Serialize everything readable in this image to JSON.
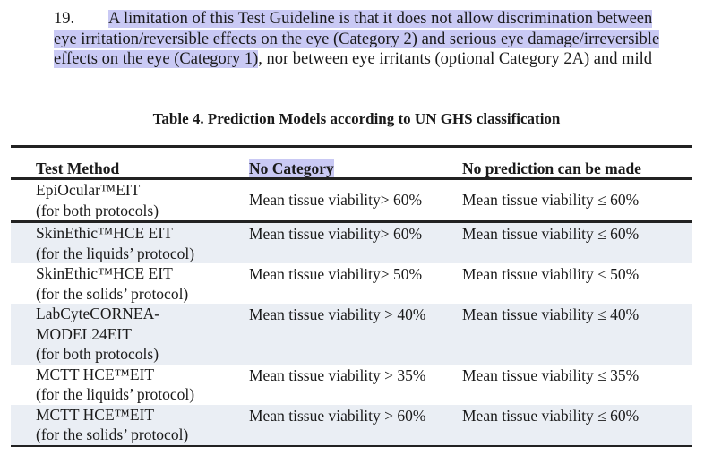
{
  "paragraph": {
    "number": "19.",
    "line1_highlight": "A limitation of this Test Guideline is that it does not allow discrimination between",
    "line2_highlight": "eye irritation/reversible effects on the eye (Category 2) and serious eye damage/irreversible",
    "line3_highlight": "effects on the eye (Category 1)",
    "line3_rest": ", nor between eye irritants (optional Category 2A) and mild"
  },
  "table": {
    "caption": "Table 4. Prediction Models according to UN GHS classification",
    "headers": [
      "Test Method",
      "No Category",
      "No prediction can be made"
    ],
    "rows": [
      {
        "method": [
          "EpiOcular™EIT",
          "(for both protocols)"
        ],
        "no_category": "Mean tissue viability> 60%",
        "no_prediction": "Mean tissue viability ≤ 60%"
      },
      {
        "method": [
          "SkinEthic™HCE EIT",
          "(for the liquids’ protocol)"
        ],
        "no_category": "Mean tissue viability> 60%",
        "no_prediction": "Mean tissue viability ≤ 60%"
      },
      {
        "method": [
          "SkinEthic™HCE EIT",
          "(for the solids’ protocol)"
        ],
        "no_category": "Mean tissue viability> 50%",
        "no_prediction": "Mean tissue viability ≤ 50%"
      },
      {
        "method": [
          "LabCyteCORNEA-",
          "MODEL24EIT",
          "(for both protocols)"
        ],
        "no_category": "Mean tissue viability > 40%",
        "no_prediction": "Mean tissue viability ≤ 40%"
      },
      {
        "method": [
          "MCTT HCE™EIT",
          "(for the liquids’ protocol)"
        ],
        "no_category": "Mean tissue viability > 35%",
        "no_prediction": "Mean tissue viability ≤ 35%"
      },
      {
        "method": [
          "MCTT HCE™EIT",
          "(for the solids’ protocol)"
        ],
        "no_category": "Mean tissue viability > 60%",
        "no_prediction": "Mean tissue viability ≤ 60%"
      }
    ]
  },
  "colors": {
    "highlight": "#c9c9f4",
    "row_shade": "#eaeef4"
  }
}
